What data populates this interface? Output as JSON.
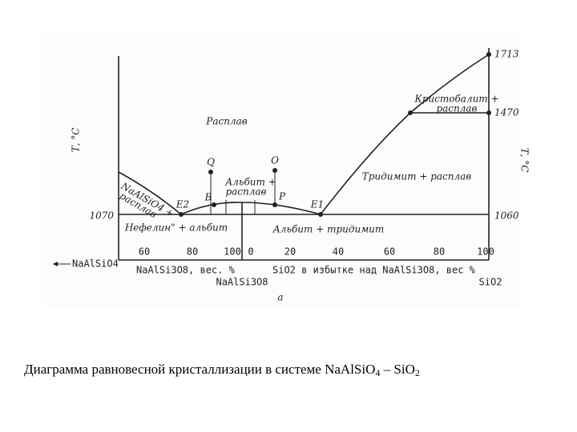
{
  "diagram": {
    "left_axis_title": "Т, °C",
    "right_axis_title": "Т, °C",
    "temperatures": [
      "1713",
      "1470",
      "1060",
      "1070"
    ],
    "regions": [
      "Расплав",
      "Кристобалит +",
      "расплав",
      "Тридимит + расплав",
      "Альбит +",
      "расплав",
      "NaAlSiO4 +",
      "расплав",
      "Нефелин\" + альбит",
      "Альбит + тридимит"
    ],
    "points": [
      "Q",
      "O",
      "B",
      "P",
      "E2",
      "E1"
    ],
    "ticks_left": [
      "60",
      "80",
      "100"
    ],
    "ticks_right": [
      "0",
      "20",
      "40",
      "60",
      "80",
      "100"
    ],
    "axis_captions": [
      "NaAlSiO4",
      "NaAlSi3O8, вес. %",
      "NaAlSi3O8",
      "SiO2 в избытке над NaAlSi3O8, вес %",
      "SiO2"
    ],
    "figure_letter": "а"
  },
  "caption": [
    "Диаграмма равновесной кристаллизации в системе NaAlSiO",
    "4",
    " – SiO",
    "2"
  ]
}
